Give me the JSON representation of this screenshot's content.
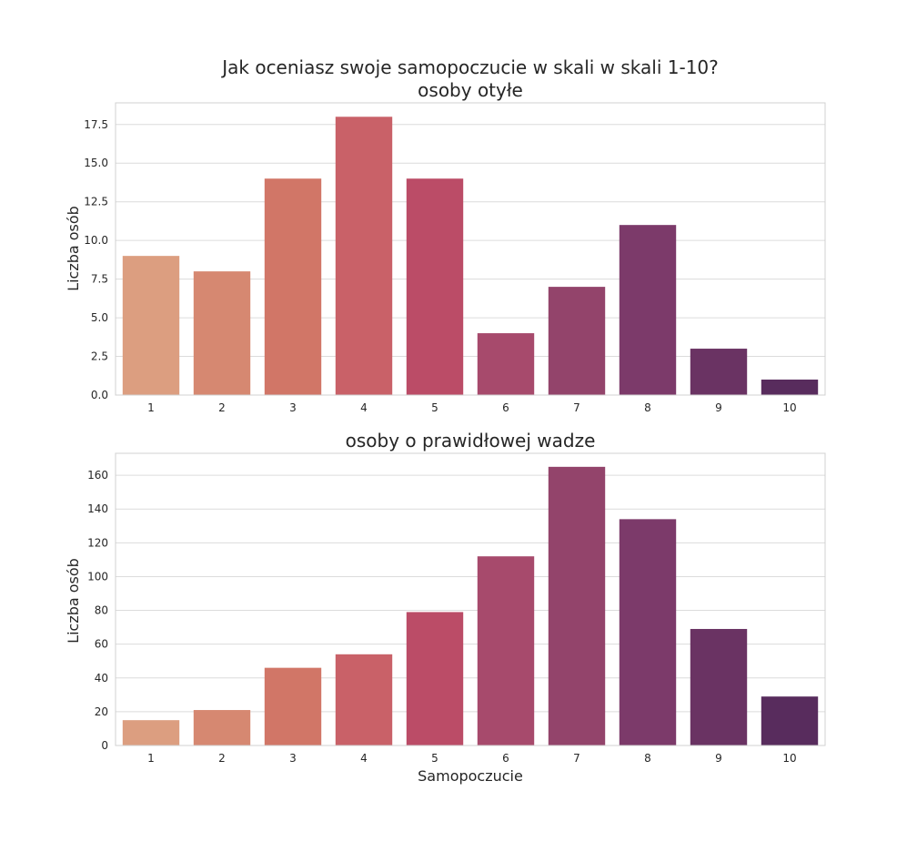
{
  "chart_data": [
    {
      "type": "bar",
      "title": "Jak oceniasz swoje samopoczucie w skali w skali 1-10?",
      "subtitle": "osoby otyłe",
      "xlabel": "",
      "ylabel": "Liczba osób",
      "categories": [
        "1",
        "2",
        "3",
        "4",
        "5",
        "6",
        "7",
        "8",
        "9",
        "10"
      ],
      "values": [
        9,
        8,
        14,
        18,
        14,
        4,
        7,
        11,
        3,
        1
      ],
      "ylim": [
        0,
        18.9
      ],
      "yticks": [
        0,
        2.5,
        5,
        7.5,
        10,
        12.5,
        15,
        17.5
      ],
      "ytick_labels": [
        "0.0",
        "2.5",
        "5.0",
        "7.5",
        "10.0",
        "12.5",
        "15.0",
        "17.5"
      ],
      "grid": true,
      "colors": [
        "#dc9e80",
        "#d68871",
        "#d17667",
        "#c96168",
        "#bb4c67",
        "#a74a6c",
        "#93446b",
        "#7c3a6a",
        "#6a3363",
        "#582c5d"
      ]
    },
    {
      "type": "bar",
      "title": "osoby o prawidłowej wadze",
      "xlabel": "Samopoczucie",
      "ylabel": "Liczba osób",
      "categories": [
        "1",
        "2",
        "3",
        "4",
        "5",
        "6",
        "7",
        "8",
        "9",
        "10"
      ],
      "values": [
        15,
        21,
        46,
        54,
        79,
        112,
        165,
        134,
        69,
        29
      ],
      "ylim": [
        0,
        173
      ],
      "yticks": [
        0,
        20,
        40,
        60,
        80,
        100,
        120,
        140,
        160
      ],
      "ytick_labels": [
        "0",
        "20",
        "40",
        "60",
        "80",
        "100",
        "120",
        "140",
        "160"
      ],
      "grid": true,
      "colors": [
        "#dc9e80",
        "#d68871",
        "#d17667",
        "#c96168",
        "#bb4c67",
        "#a74a6c",
        "#93446b",
        "#7c3a6a",
        "#6a3363",
        "#582c5d"
      ]
    }
  ]
}
